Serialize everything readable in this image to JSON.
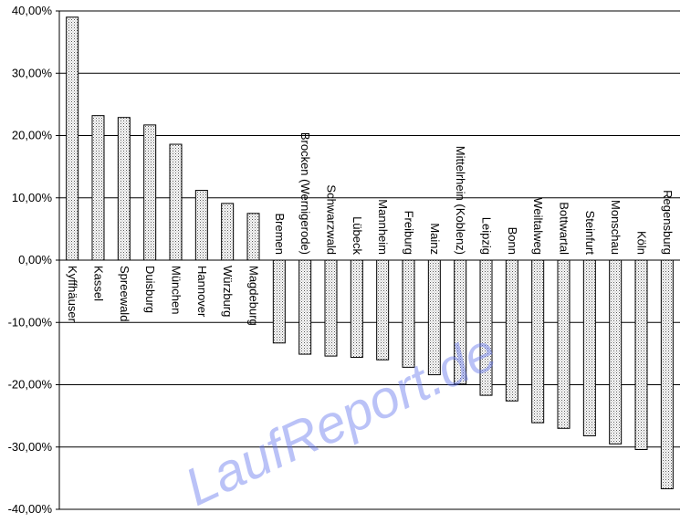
{
  "chart_data": {
    "type": "bar",
    "categories": [
      "Kyffhäuser",
      "Kassel",
      "Spreewald",
      "Duisburg",
      "München",
      "Hannover",
      "Würzburg",
      "Magdeburg",
      "Bremen",
      "Brocken (Wernigerode)",
      "Schwarzwald",
      "Lübeck",
      "Mannheim",
      "Freiburg",
      "Mainz",
      "Mittelrhein (Koblenz)",
      "Leipzig",
      "Bonn",
      "Weiltalweg",
      "Bottwartal",
      "Steinfurt",
      "Monschau",
      "Köln",
      "Regensburg"
    ],
    "values": [
      39.0,
      23.2,
      22.9,
      21.7,
      18.6,
      11.2,
      9.1,
      7.5,
      -13.3,
      -15.1,
      -15.4,
      -15.6,
      -16.0,
      -17.2,
      -18.4,
      -19.9,
      -21.7,
      -22.6,
      -26.1,
      -27.0,
      -28.2,
      -29.5,
      -30.4,
      -36.7
    ],
    "ylim": [
      -40,
      40
    ],
    "yticks": [
      "40,00%",
      "30,00%",
      "20,00%",
      "10,00%",
      "0,00%",
      "-10,00%",
      "-20,00%",
      "-30,00%",
      "-40,00%"
    ],
    "ytick_values": [
      40,
      30,
      20,
      10,
      0,
      -10,
      -20,
      -30,
      -40
    ],
    "grid": true,
    "bar_fill": "dotted light",
    "title": "",
    "xlabel": "",
    "ylabel": ""
  },
  "watermark": "LaufReport.de"
}
